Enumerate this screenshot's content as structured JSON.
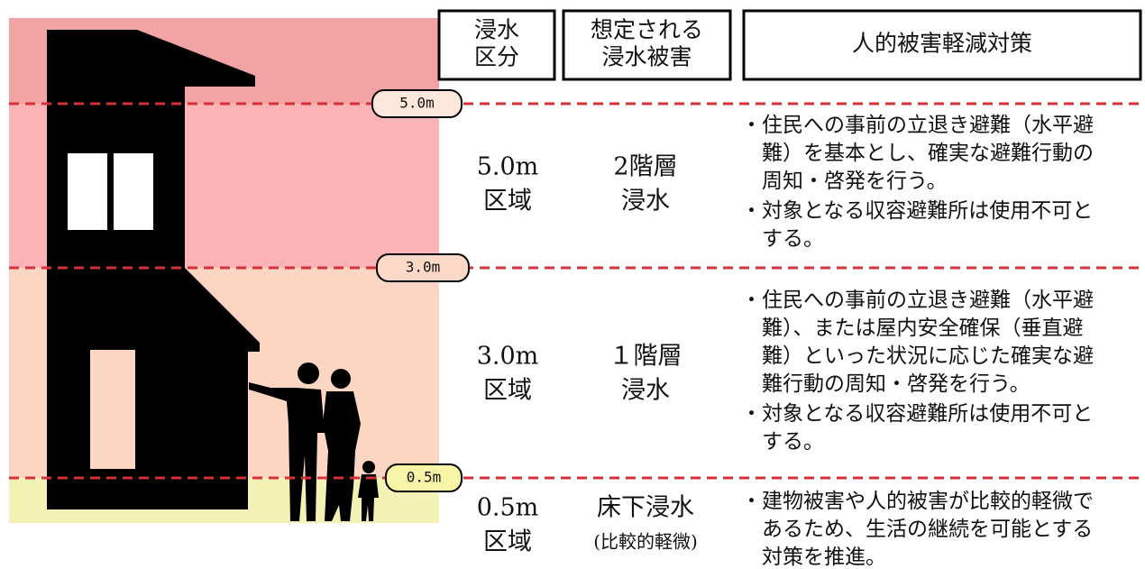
{
  "header": {
    "columns": [
      [
        "浸水",
        "区分"
      ],
      [
        "想定される",
        "浸水被害"
      ],
      [
        "人的被害軽減対策"
      ]
    ]
  },
  "levels": [
    {
      "label": "5.0m",
      "zone": [
        "5.0m",
        "区域"
      ],
      "damage": [
        "2階層",
        "浸水"
      ],
      "measures": [
        [
          "・住民への事前の立退き避難（水平避",
          "難）を基本とし、確実な避難行動の",
          "周知・啓発を行う。"
        ],
        [
          "・対象となる収容避難所は使用不可と",
          "する。"
        ]
      ]
    },
    {
      "label": "3.0m",
      "zone": [
        "3.0m",
        "区域"
      ],
      "damage": [
        "１階層",
        "浸水"
      ],
      "measures": [
        [
          "・住民への事前の立退き避難（水平避",
          "難）、または屋内安全確保（垂直避",
          "難）といった状況に応じた確実な避",
          "難行動の周知・啓発を行う。"
        ],
        [
          "・対象となる収容避難所は使用不可と",
          "する。"
        ]
      ]
    },
    {
      "label": "0.5m",
      "zone": [
        "0.5m",
        "区域"
      ],
      "damage": [
        "床下浸水",
        "(比較的軽微)"
      ],
      "measures": [
        [
          "・建物被害や人的被害が比較的軽微で",
          "あるため、生活の継続を可能とする",
          "対策を推進。"
        ]
      ]
    }
  ]
}
